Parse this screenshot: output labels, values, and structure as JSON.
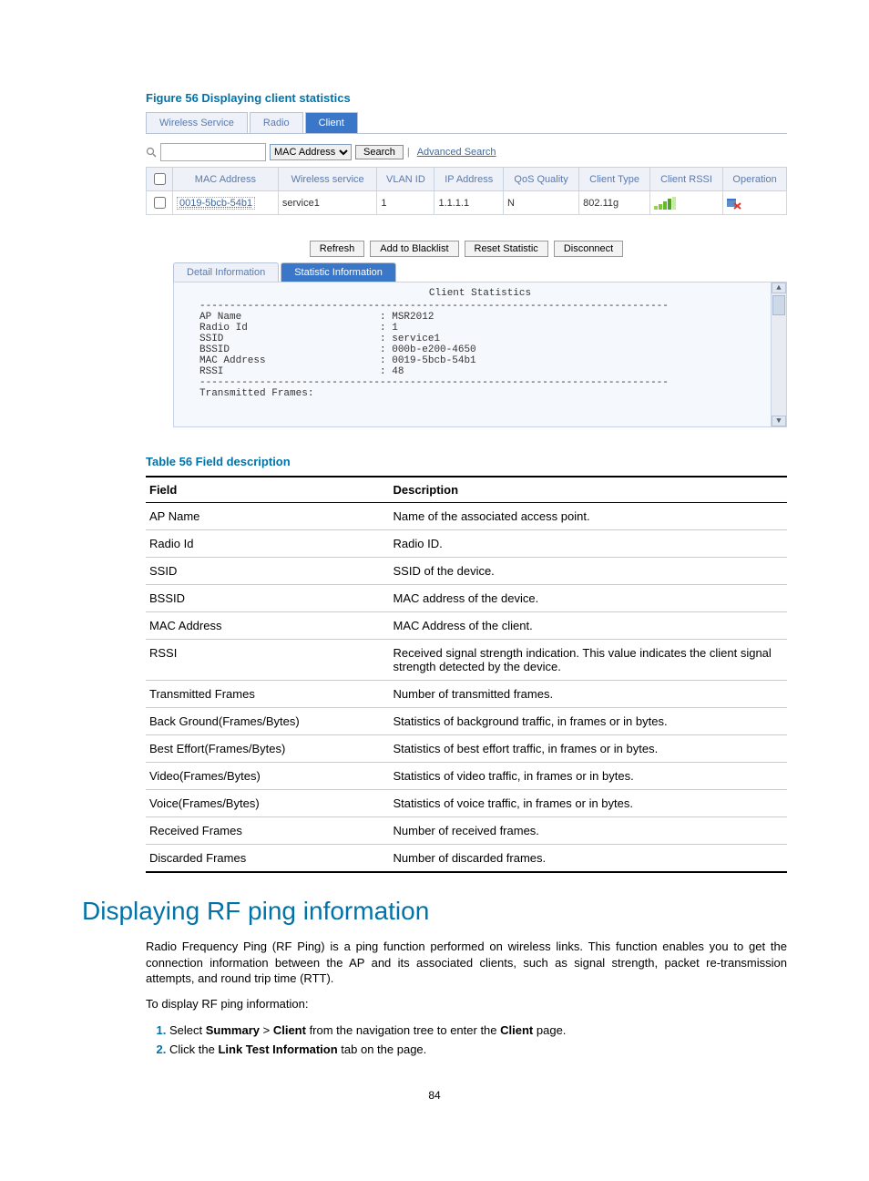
{
  "figure_caption": "Figure 56 Displaying client statistics",
  "tabs1": [
    "Wireless Service",
    "Radio",
    "Client"
  ],
  "tabs1_active_index": 2,
  "search": {
    "dropdown_selected": "MAC Address",
    "search_btn": "Search",
    "advanced": "Advanced Search"
  },
  "grid": {
    "headers": [
      "MAC Address",
      "Wireless service",
      "VLAN ID",
      "IP Address",
      "QoS Quality",
      "Client Type",
      "Client RSSI",
      "Operation"
    ],
    "row": {
      "mac": "0019-5bcb-54b1",
      "svc": "service1",
      "vlan": "1",
      "ip": "1.1.1.1",
      "qos": "N",
      "ctype": "802.11g"
    }
  },
  "rssi_bar_colors": [
    "#9bd24a",
    "#7ec63a",
    "#62b92a",
    "#4aa81e",
    "#c9e8a7"
  ],
  "actions": [
    "Refresh",
    "Add to Blacklist",
    "Reset Statistic",
    "Disconnect"
  ],
  "tabs2": [
    "Detail Information",
    "Statistic Information"
  ],
  "tabs2_active_index": 1,
  "stats": {
    "title": "Client Statistics",
    "sep": "------------------------------------------------------------------------------",
    "rows": [
      [
        "AP Name",
        "MSR2012"
      ],
      [
        "Radio Id",
        "1"
      ],
      [
        "SSID",
        "service1"
      ],
      [
        "BSSID",
        "000b-e200-4650"
      ],
      [
        "MAC Address",
        "0019-5bcb-54b1"
      ],
      [
        "RSSI",
        "48"
      ]
    ],
    "tx_label": "Transmitted Frames:"
  },
  "table_caption": "Table 56 Field description",
  "ref_table": {
    "col1": "Field",
    "col2": "Description",
    "rows": [
      [
        "AP Name",
        "Name of the associated access point."
      ],
      [
        "Radio Id",
        "Radio ID."
      ],
      [
        "SSID",
        "SSID of the device."
      ],
      [
        "BSSID",
        "MAC address of the device."
      ],
      [
        "MAC Address",
        "MAC Address of the client."
      ],
      [
        "RSSI",
        "Received signal strength indication. This value indicates the client signal strength detected by the device."
      ],
      [
        "Transmitted Frames",
        "Number of transmitted frames."
      ],
      [
        "Back Ground(Frames/Bytes)",
        "Statistics of background traffic, in frames or in bytes."
      ],
      [
        "Best Effort(Frames/Bytes)",
        "Statistics of best effort traffic, in frames or in bytes."
      ],
      [
        "Video(Frames/Bytes)",
        "Statistics of video traffic, in frames or in bytes."
      ],
      [
        "Voice(Frames/Bytes)",
        "Statistics of voice traffic, in frames or in bytes."
      ],
      [
        "Received Frames",
        "Number of received frames."
      ],
      [
        "Discarded Frames",
        "Number of discarded frames."
      ]
    ]
  },
  "section_heading": "Displaying RF ping information",
  "para1": "Radio Frequency Ping (RF Ping) is a ping function performed on wireless links. This function enables you to get the connection information between the AP and its associated clients, such as signal strength, packet re-transmission attempts, and round trip time (RTT).",
  "para2": "To display RF ping information:",
  "steps": {
    "s1_a": "Select ",
    "s1_b": "Summary",
    "s1_c": " > ",
    "s1_d": "Client",
    "s1_e": " from the navigation tree to enter the ",
    "s1_f": "Client",
    "s1_g": " page.",
    "s2_a": "Click the ",
    "s2_b": "Link Test Information",
    "s2_c": " tab on the page."
  },
  "page_number": "84",
  "colors": {
    "accent": "#0073a8",
    "tab_active_bg": "#3a77c8",
    "link": "#426a9e",
    "op_icon_fg": "#d83a2a"
  }
}
